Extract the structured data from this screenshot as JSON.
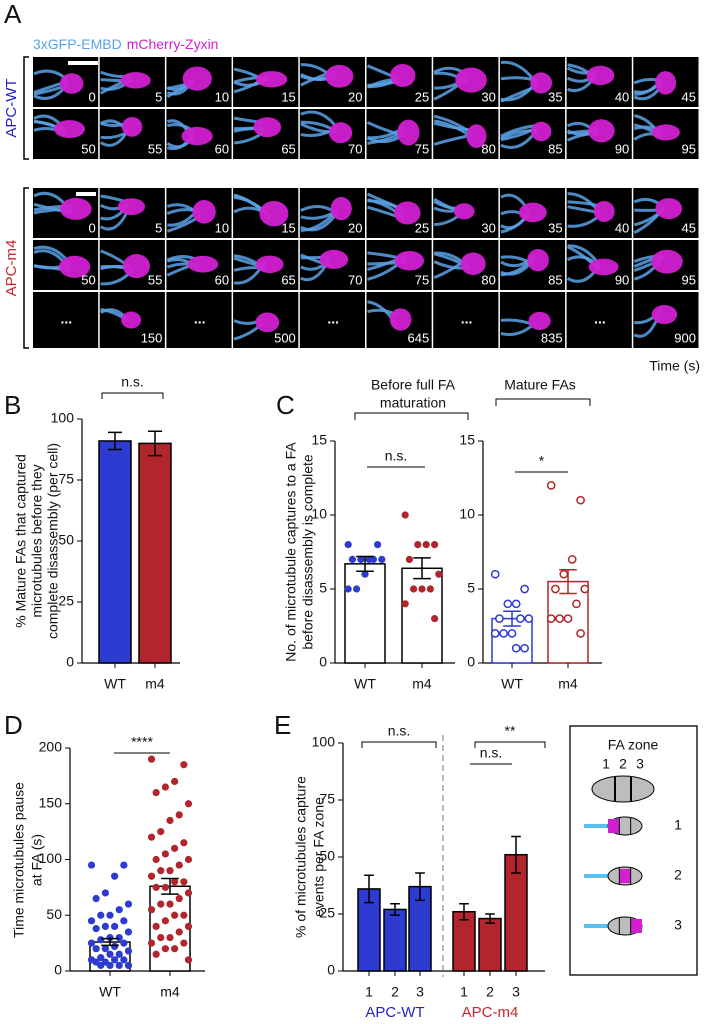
{
  "panel_a": {
    "letter": "A",
    "channels": [
      "3xGFP-EMBD",
      "mCherry-Zyxin"
    ],
    "channel_colors": [
      "#5aa2e6",
      "#d11fd1"
    ],
    "groups": [
      {
        "label": "APC-WT",
        "color": "#2323c8",
        "rows": [
          [
            0,
            5,
            10,
            15,
            20,
            25,
            30,
            35,
            40,
            45
          ],
          [
            50,
            55,
            60,
            65,
            70,
            75,
            80,
            85,
            90,
            95
          ]
        ]
      },
      {
        "label": "APC-m4",
        "color": "#c8252b",
        "rows": [
          [
            0,
            5,
            10,
            15,
            20,
            25,
            30,
            35,
            40,
            45
          ],
          [
            50,
            55,
            60,
            65,
            70,
            75,
            80,
            85,
            90,
            95
          ],
          [
            "...",
            150,
            "...",
            500,
            "...",
            645,
            "...",
            835,
            "...",
            900
          ]
        ]
      }
    ],
    "time_label": "Time (s)"
  },
  "chart_data": [
    {
      "type": "bar",
      "panel": "B",
      "ylabel": [
        "% Mature FAs that captured",
        "microtubules before they",
        "complete disassembly (per cell)"
      ],
      "categories": [
        "WT",
        "m4"
      ],
      "values": [
        91,
        90
      ],
      "errors": [
        3.5,
        5
      ],
      "colors": [
        "#2d3bd1",
        "#b0262c"
      ],
      "ylim": [
        0,
        100
      ],
      "yticks": [
        0,
        25,
        50,
        75,
        100
      ],
      "annotations": [
        "n.s."
      ]
    },
    {
      "type": "bar_scatter",
      "panel": "C",
      "ylabel": [
        "No. of microtubule captures to a FA",
        "before disassembly is complete"
      ],
      "ylim": [
        0,
        15
      ],
      "yticks": [
        0,
        5,
        10,
        15
      ],
      "panels": [
        {
          "title": [
            "Before full FA",
            "maturation"
          ],
          "categories": [
            "WT",
            "m4"
          ],
          "values": [
            6.7,
            6.4
          ],
          "errors": [
            0.5,
            0.7
          ],
          "points": [
            [
              8,
              8,
              7,
              7,
              7,
              7,
              7,
              6,
              5,
              5
            ],
            [
              10,
              8,
              8,
              8,
              7,
              6,
              5,
              5,
              5,
              4,
              3
            ]
          ],
          "colors": [
            "#2d3bd1",
            "#b0262c"
          ],
          "bar_fill": "#ffffff",
          "bar_edge": [
            "#000000",
            "#000000"
          ],
          "open_markers": false,
          "annotations": [
            "n.s."
          ]
        },
        {
          "title": [
            "Mature FAs"
          ],
          "categories": [
            "WT",
            "m4"
          ],
          "values": [
            3,
            5.5
          ],
          "errors": [
            0.5,
            0.8
          ],
          "points": [
            [
              6,
              5,
              4,
              4,
              3,
              3,
              3,
              2,
              2,
              2,
              1,
              1
            ],
            [
              12,
              11,
              7,
              6,
              5,
              5,
              4,
              3,
              3,
              3,
              2
            ]
          ],
          "colors": [
            "#2d3bd1",
            "#b0262c"
          ],
          "bar_fill": "#ffffff",
          "bar_edge": [
            "#2d3bd1",
            "#b0262c"
          ],
          "open_markers": true,
          "annotations": [
            "*"
          ]
        }
      ]
    },
    {
      "type": "bar_scatter",
      "panel": "D",
      "ylabel": [
        "Time microtubules pause",
        "at FA (s)"
      ],
      "ylim": [
        0,
        200
      ],
      "yticks": [
        0,
        50,
        100,
        150,
        200
      ],
      "panels": [
        {
          "categories": [
            "WT",
            "m4"
          ],
          "values": [
            26,
            76
          ],
          "errors": [
            3,
            7
          ],
          "points": [
            [
              95,
              95,
              85,
              70,
              65,
              60,
              55,
              50,
              50,
              45,
              45,
              40,
              40,
              38,
              35,
              30,
              30,
              28,
              25,
              25,
              22,
              20,
              20,
              18,
              15,
              15,
              12,
              10,
              10,
              10,
              8,
              8,
              5,
              5,
              5,
              5
            ],
            [
              190,
              185,
              170,
              165,
              160,
              150,
              140,
              135,
              125,
              120,
              115,
              110,
              105,
              100,
              100,
              95,
              90,
              90,
              85,
              80,
              80,
              75,
              75,
              70,
              65,
              60,
              60,
              55,
              50,
              50,
              45,
              40,
              40,
              35,
              30,
              30,
              25,
              25,
              20,
              20,
              15,
              10
            ]
          ],
          "colors": [
            "#2d3bd1",
            "#b0262c"
          ],
          "bar_fill": "#ffffff",
          "bar_edge": [
            "#000000",
            "#000000"
          ],
          "open_markers": false,
          "annotations": [
            "****"
          ]
        }
      ]
    },
    {
      "type": "bar",
      "panel": "E",
      "ylabel": [
        "% of microtubules capture",
        "events per FA zone"
      ],
      "categories": [
        "1",
        "2",
        "3",
        "1",
        "2",
        "3"
      ],
      "values": [
        36,
        27,
        37,
        26,
        23,
        51
      ],
      "errors": [
        6,
        2.5,
        6,
        3.5,
        2,
        8
      ],
      "colors": [
        "#2d3bd1",
        "#2d3bd1",
        "#2d3bd1",
        "#b0262c",
        "#b0262c",
        "#b0262c"
      ],
      "ylim": [
        0,
        100
      ],
      "yticks": [
        0,
        25,
        50,
        75,
        100
      ],
      "annotations": [
        "n.s.",
        "n.s.",
        "**"
      ],
      "groups": [
        {
          "label": "APC-WT",
          "color": "#2323c8"
        },
        {
          "label": "APC-m4",
          "color": "#c8252b"
        }
      ],
      "legend": {
        "title": "FA zone",
        "zones": [
          "1",
          "2",
          "3"
        ],
        "rows": [
          "1",
          "2",
          "3"
        ]
      }
    }
  ]
}
